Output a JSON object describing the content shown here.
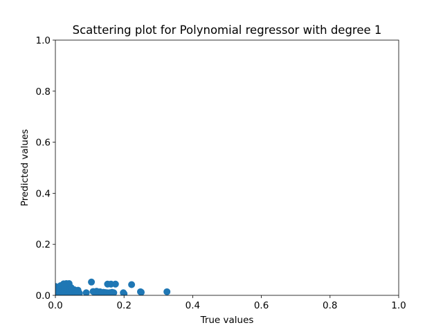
{
  "chart_data": {
    "type": "scatter",
    "title": "Scattering plot for Polynomial regressor with degree 1",
    "xlabel": "True values",
    "ylabel": "Predicted values",
    "xlim": [
      0,
      1
    ],
    "ylim": [
      0,
      1
    ],
    "xticks": [
      "0.0",
      "0.2",
      "0.4",
      "0.6",
      "0.8",
      "1.0"
    ],
    "yticks": [
      "0.0",
      "0.2",
      "0.4",
      "0.6",
      "0.8",
      "1.0"
    ],
    "grid": false,
    "color": "#1f77b4",
    "points": [
      [
        0.0,
        0.035
      ],
      [
        0.003,
        0.03
      ],
      [
        0.005,
        0.025
      ],
      [
        0.008,
        0.02
      ],
      [
        0.01,
        0.012
      ],
      [
        0.012,
        0.028
      ],
      [
        0.014,
        0.005
      ],
      [
        0.016,
        0.022
      ],
      [
        0.018,
        0.015
      ],
      [
        0.02,
        0.03
      ],
      [
        0.022,
        0.01
      ],
      [
        0.024,
        0.045
      ],
      [
        0.026,
        0.02
      ],
      [
        0.028,
        0.008
      ],
      [
        0.03,
        0.035
      ],
      [
        0.032,
        0.046
      ],
      [
        0.034,
        0.015
      ],
      [
        0.036,
        0.025
      ],
      [
        0.038,
        0.005
      ],
      [
        0.04,
        0.046
      ],
      [
        0.042,
        0.018
      ],
      [
        0.044,
        0.012
      ],
      [
        0.046,
        0.03
      ],
      [
        0.048,
        0.02
      ],
      [
        0.05,
        0.008
      ],
      [
        0.052,
        0.015
      ],
      [
        0.055,
        0.022
      ],
      [
        0.058,
        0.01
      ],
      [
        0.06,
        0.018
      ],
      [
        0.063,
        0.012
      ],
      [
        0.066,
        0.02
      ],
      [
        0.07,
        0.008
      ],
      [
        0.005,
        0.008
      ],
      [
        0.015,
        0.038
      ],
      [
        0.025,
        0.04
      ],
      [
        0.09,
        0.01
      ],
      [
        0.105,
        0.052
      ],
      [
        0.11,
        0.015
      ],
      [
        0.115,
        0.01
      ],
      [
        0.12,
        0.016
      ],
      [
        0.125,
        0.012
      ],
      [
        0.13,
        0.014
      ],
      [
        0.135,
        0.01
      ],
      [
        0.14,
        0.012
      ],
      [
        0.145,
        0.011
      ],
      [
        0.15,
        0.01
      ],
      [
        0.152,
        0.044
      ],
      [
        0.158,
        0.01
      ],
      [
        0.162,
        0.044
      ],
      [
        0.165,
        0.012
      ],
      [
        0.17,
        0.01
      ],
      [
        0.175,
        0.044
      ],
      [
        0.198,
        0.01
      ],
      [
        0.2,
        0.006
      ],
      [
        0.222,
        0.042
      ],
      [
        0.248,
        0.014
      ],
      [
        0.25,
        0.012
      ],
      [
        0.325,
        0.014
      ]
    ]
  }
}
